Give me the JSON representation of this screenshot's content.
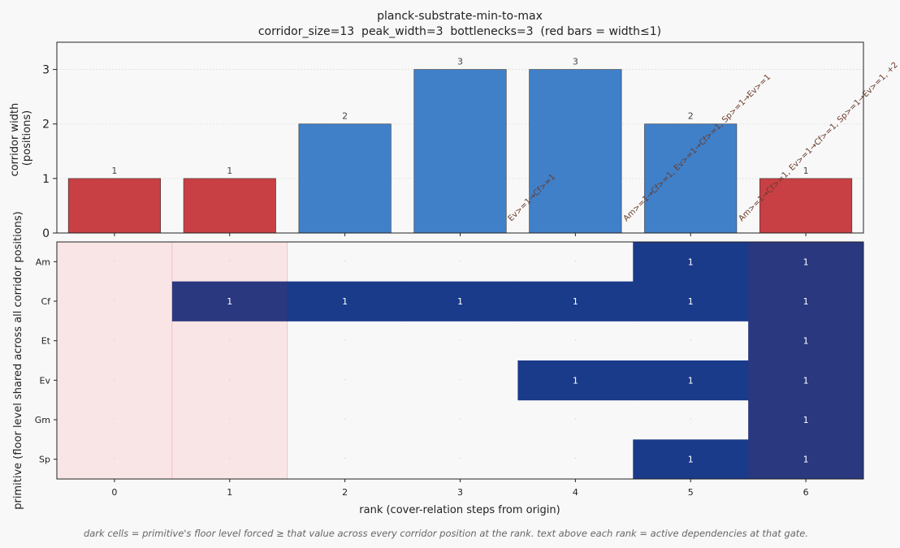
{
  "title": "planck-substrate-min-to-max",
  "subtitle": "corridor_size=13  peak_width=3  bottlenecks=3  (red bars = width≤1)",
  "footer": "dark cells = primitive's floor level forced ≥ that value across every corridor position at the rank.  text above each rank = active dependencies at that gate.",
  "colors": {
    "bar_normal": "#3f80c9",
    "bar_bottleneck": "#c84044",
    "cell_dark": "#1a3a8a",
    "cell_darker": "#2a3880",
    "bottleneck_shade": "#f9e5e5",
    "background": "#f8f8f8"
  },
  "chart_data": [
    {
      "type": "bar",
      "categories": [
        "0",
        "1",
        "2",
        "3",
        "4",
        "5",
        "6"
      ],
      "values": [
        1,
        1,
        2,
        3,
        3,
        2,
        1
      ],
      "ylabel": "corridor width\n(positions)",
      "ylim": [
        0,
        3.5
      ],
      "yticks": [
        0,
        1,
        2,
        3
      ],
      "bottleneck_threshold": 1,
      "dependency_labels": [
        "",
        "",
        "",
        "Ev>=1→Cf>=1",
        "Am>=1→Cf>=1, Ev>=1→Cf>=1, Sp>=1→Ev>=1",
        "Am>=1→Cf>=1, Ev>=1→Cf>=1, Sp>=1→Ev>=1, +2",
        ""
      ],
      "grid": true
    },
    {
      "type": "heatmap",
      "x": [
        "0",
        "1",
        "2",
        "3",
        "4",
        "5",
        "6"
      ],
      "y": [
        "Am",
        "Cf",
        "Et",
        "Ev",
        "Gm",
        "Sp"
      ],
      "values": [
        [
          0,
          0,
          0,
          0,
          0,
          1,
          1
        ],
        [
          0,
          1,
          1,
          1,
          1,
          1,
          1
        ],
        [
          0,
          0,
          0,
          0,
          0,
          0,
          1
        ],
        [
          0,
          0,
          0,
          0,
          1,
          1,
          1
        ],
        [
          0,
          0,
          0,
          0,
          0,
          0,
          1
        ],
        [
          0,
          0,
          0,
          0,
          0,
          1,
          1
        ]
      ],
      "zero_label": "·",
      "xlabel": "rank (cover-relation steps from origin)",
      "ylabel": "primitive (floor level shared across all corridor positions)"
    }
  ]
}
